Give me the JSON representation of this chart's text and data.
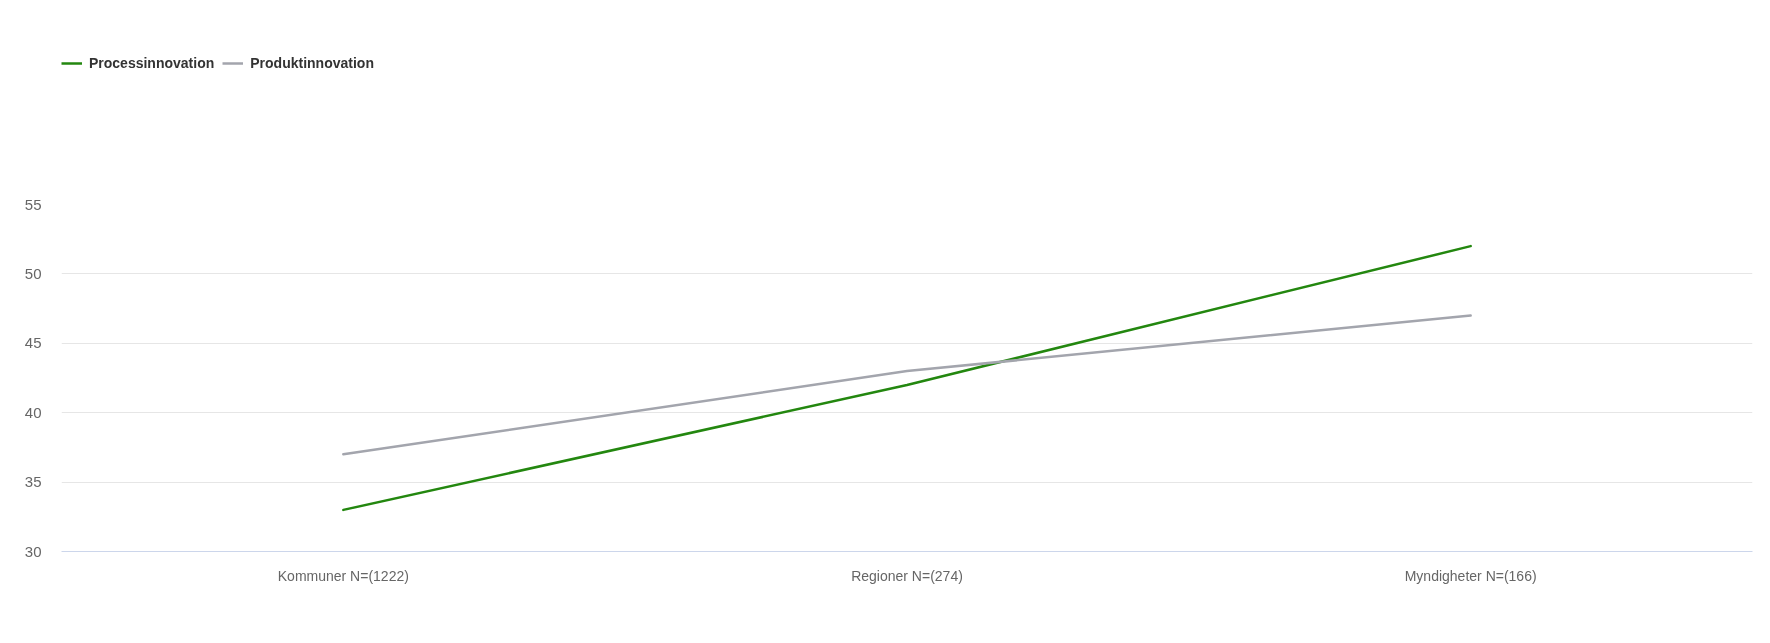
{
  "chart_data": {
    "type": "line",
    "categories": [
      "Kommuner N=(1222)",
      "Regioner N=(274)",
      "Myndigheter N=(166)"
    ],
    "series": [
      {
        "name": "Processinnovation",
        "color": "#23870f",
        "values": [
          33,
          42,
          52
        ]
      },
      {
        "name": "Produktinnovation",
        "color": "#a3a5ad",
        "values": [
          37,
          43,
          47
        ]
      }
    ],
    "ylim": [
      30,
      55
    ],
    "yticks": [
      30,
      35,
      40,
      45,
      50,
      55
    ],
    "grid": "y",
    "legend": "top left",
    "line_style": "solid"
  }
}
